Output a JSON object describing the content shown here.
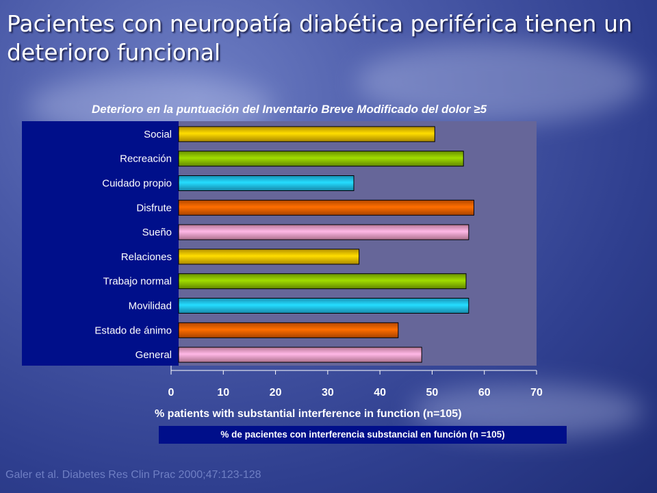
{
  "slide": {
    "title": "Pacientes con neuropatía diabética periférica tienen un deterioro funcional",
    "citation": "Galer et al. Diabetes Res Clin Prac 2000;47:123-128"
  },
  "chart_data": {
    "type": "bar",
    "orientation": "horizontal",
    "title": "Deterioro en la puntuación del Inventario Breve Modificado del dolor ≥5",
    "xlabel": "% patients with substantial interference in function (n=105)",
    "xlabel_secondary": "% de pacientes con interferencia substancial en función (n =105)",
    "categories": [
      "Social",
      "Recreación",
      "Cuidado propio",
      "Disfrute",
      "Sueño",
      "Relaciones",
      "Trabajo normal",
      "Movilidad",
      "Estado de ánimo",
      "General"
    ],
    "values": [
      50.5,
      56,
      35,
      58,
      57,
      36,
      56.5,
      57,
      43.5,
      48
    ],
    "bar_colors": [
      "#f0c000",
      "#8cc000",
      "#20c0f0",
      "#f06000",
      "#f5a0c8",
      "#f0c000",
      "#8cc000",
      "#20c0f0",
      "#f06000",
      "#f5a0c8"
    ],
    "xlim": [
      0,
      70
    ],
    "xticks": [
      0,
      10,
      20,
      30,
      40,
      50,
      60,
      70
    ],
    "plot_background": "#666699",
    "grid": false
  }
}
